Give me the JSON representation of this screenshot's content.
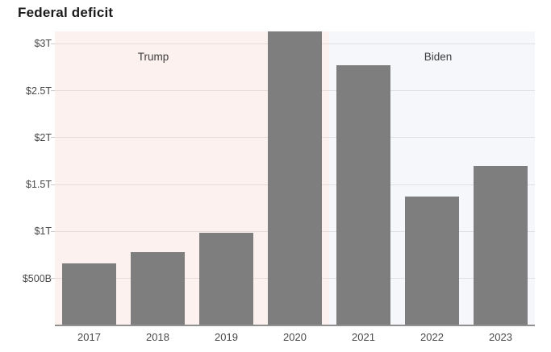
{
  "page": {
    "background": "#ffffff"
  },
  "chart_data": {
    "type": "bar",
    "title": "Federal deficit",
    "categories": [
      "2017",
      "2018",
      "2019",
      "2020",
      "2021",
      "2022",
      "2023"
    ],
    "values": [
      665,
      779,
      984,
      3132,
      2772,
      1375,
      1695
    ],
    "values_unit": "billions of US dollars",
    "xlabel": "",
    "ylabel": "",
    "ylim": [
      0,
      3132
    ],
    "yticks": [
      {
        "value": 500,
        "label": "$500B"
      },
      {
        "value": 1000,
        "label": "$1T"
      },
      {
        "value": 1500,
        "label": "$1.5T"
      },
      {
        "value": 2000,
        "label": "$2T"
      },
      {
        "value": 2500,
        "label": "$2.5T"
      },
      {
        "value": 3000,
        "label": "$3T"
      }
    ],
    "grid": true,
    "legend": "none",
    "bar_color": "#7e7e7e",
    "axis_line_color": "#909090",
    "regions": [
      {
        "label": "Trump",
        "start_category": "2017",
        "end_category": "2020",
        "color": "#fcf1ef"
      },
      {
        "label": "Biden",
        "start_category": "2021",
        "end_category": "2023",
        "color": "#f5f7fb"
      }
    ]
  }
}
